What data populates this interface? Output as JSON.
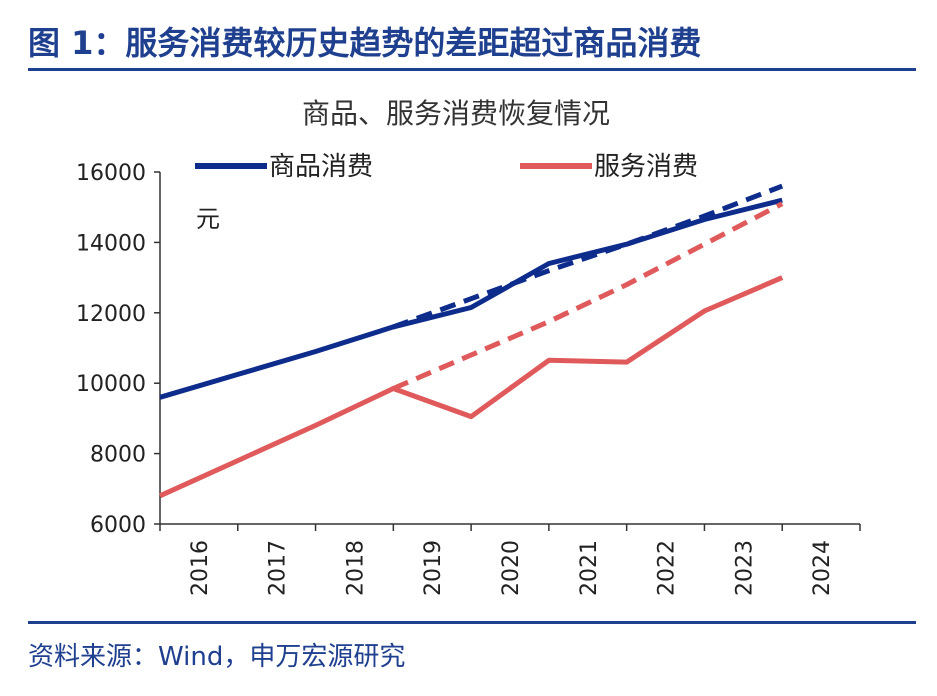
{
  "figure": {
    "title": "图 1：服务消费较历史趋势的差距超过商品消费",
    "source": "资料来源：Wind，申万宏源研究"
  },
  "colors": {
    "navy": "#0d2c8c",
    "red": "#e05a5c",
    "accent": "#1f3f8f",
    "axis": "#333333"
  },
  "chart_data": {
    "type": "line",
    "title": "商品、服务消费恢复情况",
    "unit_label": "元",
    "xlabel": "",
    "ylabel": "",
    "categories": [
      "2016",
      "2017",
      "2018",
      "2019",
      "2020",
      "2021",
      "2022",
      "2023",
      "2024"
    ],
    "ylim": [
      6000,
      16000
    ],
    "yticks": [
      6000,
      8000,
      10000,
      12000,
      14000,
      16000
    ],
    "grid": false,
    "legend_position": "top",
    "series": [
      {
        "name": "商品消费",
        "style": "solid",
        "color": "#0d2c8c",
        "values": [
          9600,
          10250,
          10900,
          11600,
          12150,
          13400,
          13950,
          14650,
          15200
        ]
      },
      {
        "style": "dashed",
        "color": "#0d2c8c",
        "x_start": "2019",
        "values": [
          null,
          null,
          null,
          11600,
          12400,
          13200,
          13950,
          14750,
          15600
        ]
      },
      {
        "name": "服务消费",
        "style": "solid",
        "color": "#e05a5c",
        "values": [
          6800,
          7800,
          8800,
          9850,
          9050,
          10650,
          10600,
          12050,
          13000
        ]
      },
      {
        "style": "dashed",
        "color": "#e05a5c",
        "x_start": "2019",
        "values": [
          null,
          null,
          null,
          9850,
          10800,
          11750,
          12800,
          13950,
          15100
        ]
      }
    ]
  }
}
